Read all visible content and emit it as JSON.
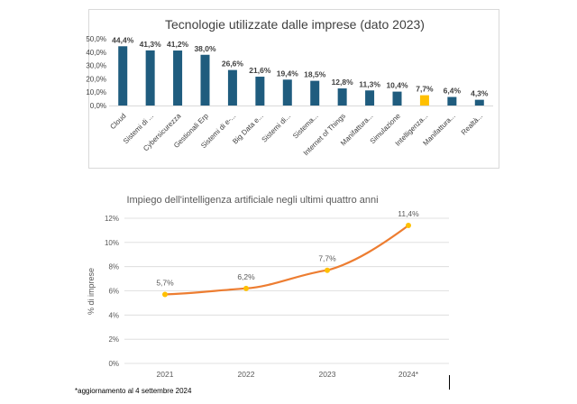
{
  "chart_data": [
    {
      "type": "bar",
      "title": "Tecnologie utilizzate dalle imprese (dato 2023)",
      "categories": [
        "Cloud",
        "Sistemi di ...",
        "Cybersicurezza",
        "Gestionali Erp",
        "Sistemi di e-...",
        "Big Data e...",
        "Sistemi di...",
        "Sistema...",
        "Internet of Things",
        "Manifattura...",
        "Simulazione",
        "Intelligenza...",
        "Manifattura...",
        "Realtà..."
      ],
      "values": [
        44.4,
        41.3,
        41.2,
        38.0,
        26.6,
        21.6,
        19.4,
        18.5,
        12.8,
        11.3,
        10.4,
        7.7,
        6.4,
        4.3
      ],
      "value_labels": [
        "44,4%",
        "41,3%",
        "41,2%",
        "38,0%",
        "26,6%",
        "21,6%",
        "19,4%",
        "18,5%",
        "12,8%",
        "11,3%",
        "10,4%",
        "7,7%",
        "6,4%",
        "4,3%"
      ],
      "highlight_index": 11,
      "yticks": [
        0,
        10,
        20,
        30,
        40,
        50
      ],
      "ytick_labels": [
        "0,0%",
        "10,0%",
        "20,0%",
        "30,0%",
        "40,0%",
        "50,0%"
      ],
      "ylim": [
        0,
        50
      ],
      "grid": false,
      "colors": {
        "bar": "#1f5c7e",
        "highlight": "#ffc000",
        "text": "#404040"
      }
    },
    {
      "type": "line",
      "title": "Impiego dell'intelligenza artificiale negli ultimi quattro anni",
      "x": [
        "2021",
        "2022",
        "2023",
        "2024*"
      ],
      "values": [
        5.7,
        6.2,
        7.7,
        11.4
      ],
      "value_labels": [
        "5,7%",
        "6,2%",
        "7,7%",
        "11,4%"
      ],
      "ylabel": "% di imprese",
      "yticks": [
        0,
        2,
        4,
        6,
        8,
        10,
        12
      ],
      "ytick_labels": [
        "0%",
        "2%",
        "4%",
        "6%",
        "8%",
        "10%",
        "12%"
      ],
      "ylim": [
        0,
        12
      ],
      "grid": true,
      "colors": {
        "line": "#ed7d31",
        "marker": "#ffc000",
        "grid": "#d9d9d9",
        "text": "#595959"
      }
    }
  ],
  "footnote": "*aggiornamento al 4 settembre 2024"
}
